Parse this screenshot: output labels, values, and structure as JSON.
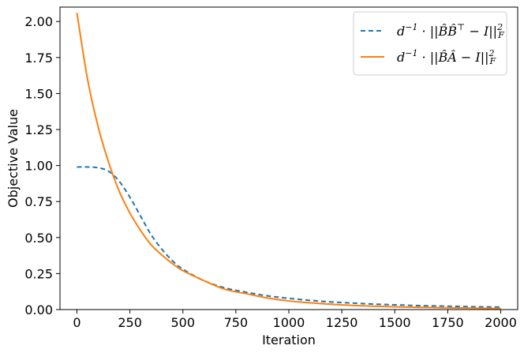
{
  "chart_data": {
    "type": "line",
    "xlabel": "Iteration",
    "ylabel": "Objective Value",
    "xlim": [
      -80,
      2080
    ],
    "ylim": [
      0,
      2.1
    ],
    "x_ticks": [
      0,
      250,
      500,
      750,
      1000,
      1250,
      1500,
      1750,
      2000
    ],
    "x_tick_labels": [
      "0",
      "250",
      "500",
      "750",
      "1000",
      "1250",
      "1500",
      "1750",
      "2000"
    ],
    "y_ticks": [
      0,
      0.25,
      0.5,
      0.75,
      1.0,
      1.25,
      1.5,
      1.75,
      2.0
    ],
    "y_tick_labels": [
      "0.00",
      "0.25",
      "0.50",
      "0.75",
      "1.00",
      "1.25",
      "1.50",
      "1.75",
      "2.00"
    ],
    "grid": false,
    "legend_position": "top-right",
    "series": [
      {
        "name": "d⁻¹ · ||B̂B̂ᵀ − I||²_F",
        "color": "#1f77b4",
        "style": "dashed",
        "x": [
          0,
          50,
          100,
          150,
          200,
          250,
          300,
          350,
          400,
          450,
          500,
          600,
          700,
          800,
          900,
          1000,
          1100,
          1200,
          1300,
          1400,
          1500,
          1600,
          1700,
          1800,
          1900,
          2000
        ],
        "y": [
          0.99,
          0.99,
          0.985,
          0.96,
          0.89,
          0.78,
          0.65,
          0.52,
          0.42,
          0.34,
          0.28,
          0.2,
          0.15,
          0.12,
          0.095,
          0.078,
          0.064,
          0.053,
          0.045,
          0.038,
          0.033,
          0.028,
          0.025,
          0.022,
          0.019,
          0.017
        ]
      },
      {
        "name": "d⁻¹ · ||B̂Â − I||²_F",
        "color": "#ff7f0e",
        "style": "solid",
        "x": [
          0,
          50,
          100,
          150,
          200,
          250,
          300,
          350,
          400,
          450,
          500,
          600,
          700,
          800,
          900,
          1000,
          1100,
          1200,
          1300,
          1400,
          1500,
          1600,
          1700,
          1800,
          1900,
          2000
        ],
        "y": [
          2.06,
          1.6,
          1.27,
          1.02,
          0.82,
          0.67,
          0.55,
          0.45,
          0.38,
          0.32,
          0.27,
          0.2,
          0.14,
          0.11,
          0.08,
          0.06,
          0.047,
          0.037,
          0.029,
          0.023,
          0.019,
          0.016,
          0.013,
          0.011,
          0.009,
          0.007
        ]
      }
    ]
  }
}
